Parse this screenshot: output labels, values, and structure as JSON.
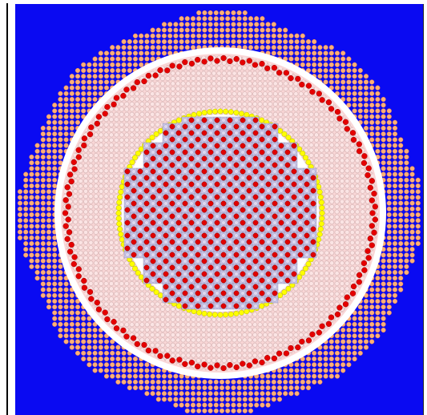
{
  "colors": {
    "background": "#ffffff",
    "coolant": "#0a0af2",
    "outer_rods": "#ffb077",
    "outer_rods_stroke": "#f08a4a",
    "gap_ring": "#ffffff",
    "reflector_fill": "#f9d6d6",
    "reflector_cell": "#fbe4e4",
    "reflector_cell_stroke": "#d3b1b1",
    "red_ring_rods": "#e50000",
    "yellow_ring_rods": "#ffff00",
    "core_fill": "#c9c4e6",
    "core_cell_stroke": "#8b8ab0",
    "core_fuel_rods": "#e00000",
    "core_fuel_rods_stroke": "#7a0000",
    "inner_gap": "#ffffff"
  },
  "figure": {
    "description_icon": "reactor-core-cross-section-icon"
  }
}
